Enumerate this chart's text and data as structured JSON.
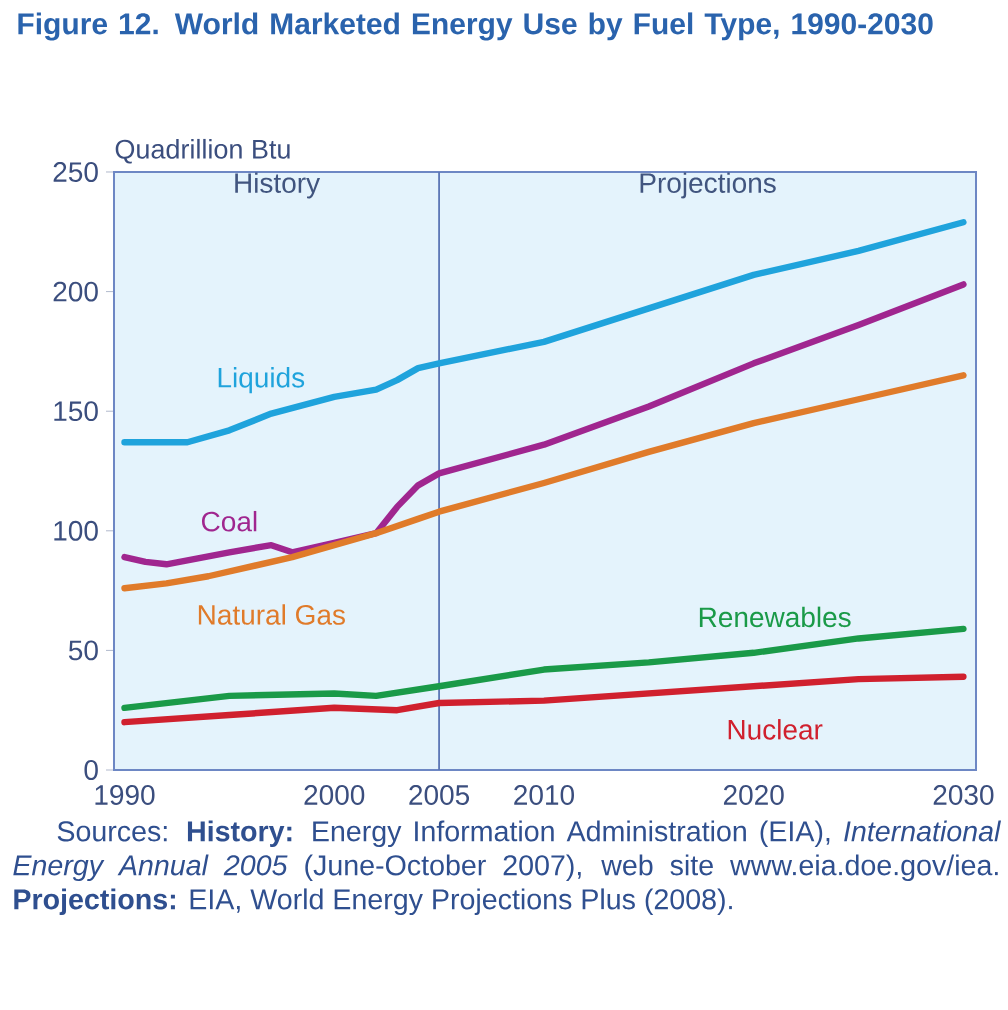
{
  "chart_data": {
    "type": "line",
    "title": "Figure 12.  World Marketed Energy Use by Fuel Type, 1990-2030",
    "ylabel": "Quadrillion Btu",
    "series": [
      {
        "name": "Liquids",
        "color": "#1fa3dc",
        "x": [
          1990,
          1993,
          1995,
          1997,
          2000,
          2002,
          2003,
          2004,
          2005,
          2010,
          2015,
          2020,
          2025,
          2030
        ],
        "values": [
          137,
          137,
          142,
          149,
          156,
          159,
          163,
          168,
          170,
          179,
          193,
          207,
          217,
          229
        ]
      },
      {
        "name": "Coal",
        "color": "#a0268f",
        "x": [
          1990,
          1991,
          1992,
          1995,
          1997,
          1998,
          2000,
          2002,
          2003,
          2004,
          2005,
          2010,
          2015,
          2020,
          2025,
          2030
        ],
        "values": [
          89,
          87,
          86,
          91,
          94,
          91,
          95,
          99,
          110,
          119,
          124,
          136,
          152,
          170,
          186,
          203
        ]
      },
      {
        "name": "Natural Gas",
        "color": "#e07b2a",
        "x": [
          1990,
          1992,
          1994,
          1996,
          1998,
          2000,
          2002,
          2004,
          2005,
          2010,
          2015,
          2020,
          2025,
          2030
        ],
        "values": [
          76,
          78,
          81,
          85,
          89,
          94,
          99,
          105,
          108,
          120,
          133,
          145,
          155,
          165
        ]
      },
      {
        "name": "Renewables",
        "color": "#1a9a48",
        "x": [
          1990,
          1995,
          2000,
          2002,
          2005,
          2010,
          2015,
          2020,
          2025,
          2030
        ],
        "values": [
          26,
          31,
          32,
          31,
          35,
          42,
          45,
          49,
          55,
          59
        ]
      },
      {
        "name": "Nuclear",
        "color": "#d0202e",
        "x": [
          1990,
          1995,
          2000,
          2003,
          2005,
          2010,
          2015,
          2020,
          2025,
          2030
        ],
        "values": [
          20,
          23,
          26,
          25,
          28,
          29,
          32,
          35,
          38,
          39
        ]
      }
    ],
    "xlim": [
      1989.5,
      2030.6
    ],
    "xticks": [
      1990,
      2000,
      2005,
      2010,
      2020,
      2030
    ],
    "ylim": [
      0,
      250
    ],
    "yticks": [
      0,
      50,
      100,
      150,
      200,
      250
    ],
    "ref_lines": [
      {
        "axis": "x",
        "value": 2005,
        "color": "#5b76b5"
      }
    ],
    "annotations": [
      "History",
      "Projections",
      "Sources: **History:** Energy Information Administration (EIA), *International Energy Annual 2005* (June-October 2007), web site www.eia.doe.gov/iea. **Projections:** EIA, World Energy Projections Plus (2008)."
    ],
    "grid": false,
    "legend": false,
    "marker": "none",
    "line_style": "solid"
  }
}
